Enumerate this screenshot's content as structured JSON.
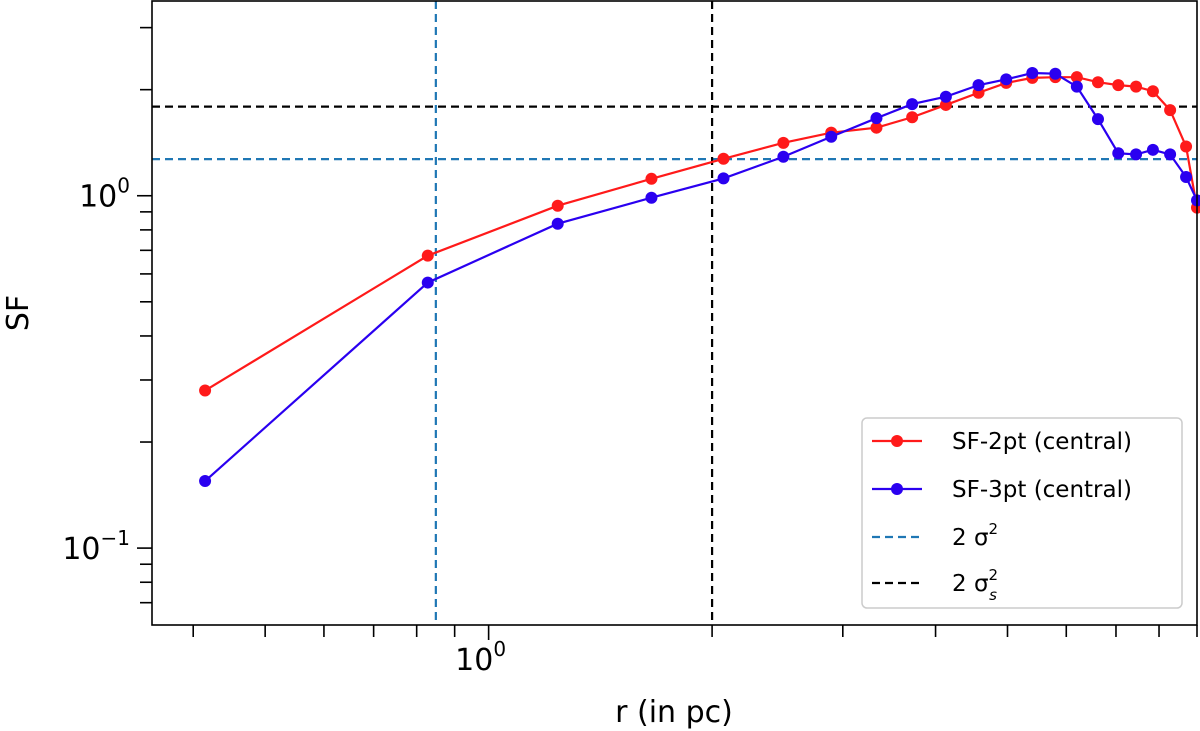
{
  "chart_data": {
    "type": "line",
    "xlabel": "r (in pc)",
    "ylabel": "SF",
    "xscale": "log",
    "yscale": "log",
    "xlim": [
      0.352,
      9.0
    ],
    "ylim": [
      0.0605,
      3.57
    ],
    "x_tick_labels": [
      {
        "value": 1,
        "label": "10",
        "exp": "0"
      }
    ],
    "y_tick_labels": [
      {
        "value": 1,
        "label": "10",
        "exp": "0"
      },
      {
        "value": 0.1,
        "label": "10",
        "exp": "−1"
      }
    ],
    "grid": false,
    "legend_position": "lower-right",
    "series": [
      {
        "name": "SF-2pt (central)",
        "color": "#ff1a1a",
        "marker": "circle",
        "x": [
          0.415,
          0.828,
          1.239,
          1.657,
          2.072,
          2.495,
          2.894,
          3.33,
          3.72,
          4.13,
          4.57,
          4.98,
          5.4,
          5.8,
          6.2,
          6.62,
          7.05,
          7.45,
          7.85,
          8.28,
          8.7,
          9.0
        ],
        "y": [
          0.28,
          0.676,
          0.937,
          1.117,
          1.273,
          1.413,
          1.51,
          1.56,
          1.67,
          1.81,
          1.96,
          2.09,
          2.16,
          2.17,
          2.17,
          2.1,
          2.06,
          2.04,
          1.98,
          1.75,
          1.38,
          0.925
        ]
      },
      {
        "name": "SF-3pt (central)",
        "color": "#2a00f0",
        "marker": "circle",
        "x": [
          0.415,
          0.828,
          1.239,
          1.657,
          2.072,
          2.495,
          2.894,
          3.33,
          3.72,
          4.13,
          4.57,
          4.98,
          5.4,
          5.8,
          6.2,
          6.62,
          7.05,
          7.45,
          7.85,
          8.28,
          8.7,
          9.0
        ],
        "y": [
          0.155,
          0.567,
          0.833,
          0.987,
          1.12,
          1.29,
          1.47,
          1.66,
          1.82,
          1.91,
          2.06,
          2.14,
          2.23,
          2.22,
          2.04,
          1.65,
          1.32,
          1.31,
          1.35,
          1.31,
          1.13,
          0.97
        ]
      }
    ],
    "reference_lines": [
      {
        "name": "2 σ²",
        "label_main": "2 σ",
        "label_sup": "2",
        "label_sub": "",
        "color": "#1f77b4",
        "style": "dashed",
        "horizontal_y": 1.27,
        "vertical_x": 0.849
      },
      {
        "name": "2 σₛ²",
        "label_main": "2 σ",
        "label_sup": "2",
        "label_sub": "s",
        "color": "#000000",
        "style": "dashed",
        "horizontal_y": 1.79,
        "vertical_x": 2.0
      }
    ]
  }
}
